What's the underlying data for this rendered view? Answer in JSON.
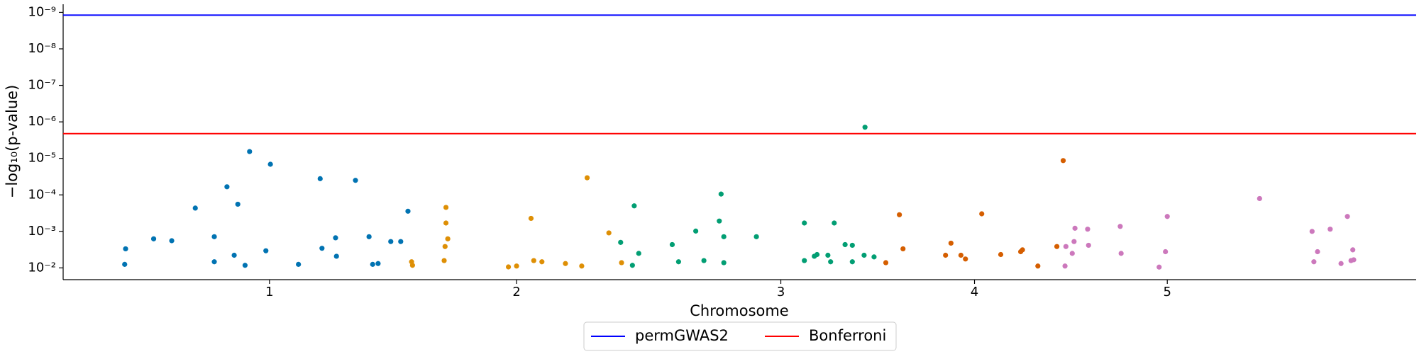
{
  "chart_data": {
    "type": "manhattan",
    "xlabel": "Chromosome",
    "ylabel": "−log₁₀(p-value)",
    "log_y": true,
    "xlim": [
      0,
      1495
    ],
    "ylim": [
      0.021,
      6e-10
    ],
    "xticks": [
      {
        "value": 228,
        "label": "1"
      },
      {
        "value": 501,
        "label": "2"
      },
      {
        "value": 793,
        "label": "3"
      },
      {
        "value": 1007,
        "label": "4"
      },
      {
        "value": 1220,
        "label": "5"
      }
    ],
    "yticks": [
      {
        "value": 1e-09,
        "label": "10⁻⁹"
      },
      {
        "value": 1e-08,
        "label": "10⁻⁸"
      },
      {
        "value": 1e-07,
        "label": "10⁻⁷"
      },
      {
        "value": 1e-06,
        "label": "10⁻⁶"
      },
      {
        "value": 1e-05,
        "label": "10⁻⁵"
      },
      {
        "value": 0.0001,
        "label": "10⁻⁴"
      },
      {
        "value": 0.001,
        "label": "10⁻³"
      },
      {
        "value": 0.01,
        "label": "10⁻²"
      }
    ],
    "legend": "bottom",
    "thresholds": [
      {
        "name": "permGWAS2",
        "value": 1.19e-09,
        "color": "#0000ff"
      },
      {
        "name": "Bonferroni",
        "value": 2.1e-06,
        "color": "#ff0000"
      }
    ],
    "series": [
      {
        "color": "#0173b2",
        "x": [
          68,
          69,
          100,
          120,
          146,
          167,
          167,
          181,
          189,
          193,
          201,
          206,
          224,
          229,
          260,
          284,
          286,
          301,
          302,
          323,
          338,
          342,
          348,
          362,
          373,
          381
        ],
        "values": [
          0.008,
          0.003,
          0.0016,
          0.0018,
          0.00023,
          0.0014,
          0.0068,
          6e-05,
          0.0045,
          0.00018,
          0.0085,
          6.5e-06,
          0.0034,
          1.45e-05,
          0.008,
          3.6e-05,
          0.0029,
          0.0015,
          0.0048,
          4e-05,
          0.0014,
          0.008,
          0.0076,
          0.0019,
          0.0019,
          0.00028
        ]
      },
      {
        "color": "#de8f05",
        "x": [
          385,
          386,
          421,
          422,
          425,
          423,
          423,
          492,
          501,
          517,
          520,
          529,
          555,
          573,
          579,
          603,
          617
        ],
        "values": [
          0.0068,
          0.0085,
          0.0063,
          0.0026,
          0.0016,
          0.00059,
          0.00022,
          0.0094,
          0.0089,
          0.00044,
          0.0063,
          0.0068,
          0.0076,
          0.0089,
          3.4e-05,
          0.0011,
          0.0072
        ]
      },
      {
        "color": "#029e73",
        "x": [
          616,
          629,
          631,
          636,
          673,
          680,
          699,
          708,
          725,
          727,
          730,
          730,
          766,
          819,
          819,
          830,
          833,
          845,
          848,
          852,
          864,
          872,
          872,
          885,
          886,
          896
        ],
        "values": [
          0.002,
          0.0085,
          0.0002,
          0.004,
          0.0023,
          0.0068,
          0.00098,
          0.0063,
          0.00052,
          9.5e-05,
          0.0014,
          0.0072,
          0.0014,
          0.00059,
          0.0063,
          0.0048,
          0.0043,
          0.0045,
          0.0068,
          0.00059,
          0.0023,
          0.0024,
          0.0068,
          0.0045,
          1.4e-06,
          0.005
        ]
      },
      {
        "color": "#d55e00",
        "x": [
          909,
          924,
          928,
          975,
          981,
          992,
          997,
          1015,
          1036,
          1058,
          1060,
          1077,
          1098,
          1105
        ],
        "values": [
          0.0072,
          0.00035,
          0.003,
          0.0045,
          0.0021,
          0.0045,
          0.0057,
          0.00033,
          0.0043,
          0.0036,
          0.0032,
          0.0089,
          0.0026,
          1.15e-05
        ]
      },
      {
        "color": "#cc78bc",
        "x": [
          1107,
          1108,
          1115,
          1117,
          1118,
          1132,
          1133,
          1168,
          1169,
          1211,
          1218,
          1220,
          1322,
          1380,
          1382,
          1386,
          1400,
          1412,
          1419,
          1423,
          1425,
          1426
        ],
        "values": [
          0.0089,
          0.0026,
          0.004,
          0.0019,
          0.00082,
          0.00087,
          0.0024,
          0.00073,
          0.004,
          0.0095,
          0.0036,
          0.00039,
          0.000126,
          0.001,
          0.0068,
          0.0036,
          0.00087,
          0.0076,
          0.00039,
          0.0063,
          0.0032,
          0.006
        ]
      }
    ]
  }
}
